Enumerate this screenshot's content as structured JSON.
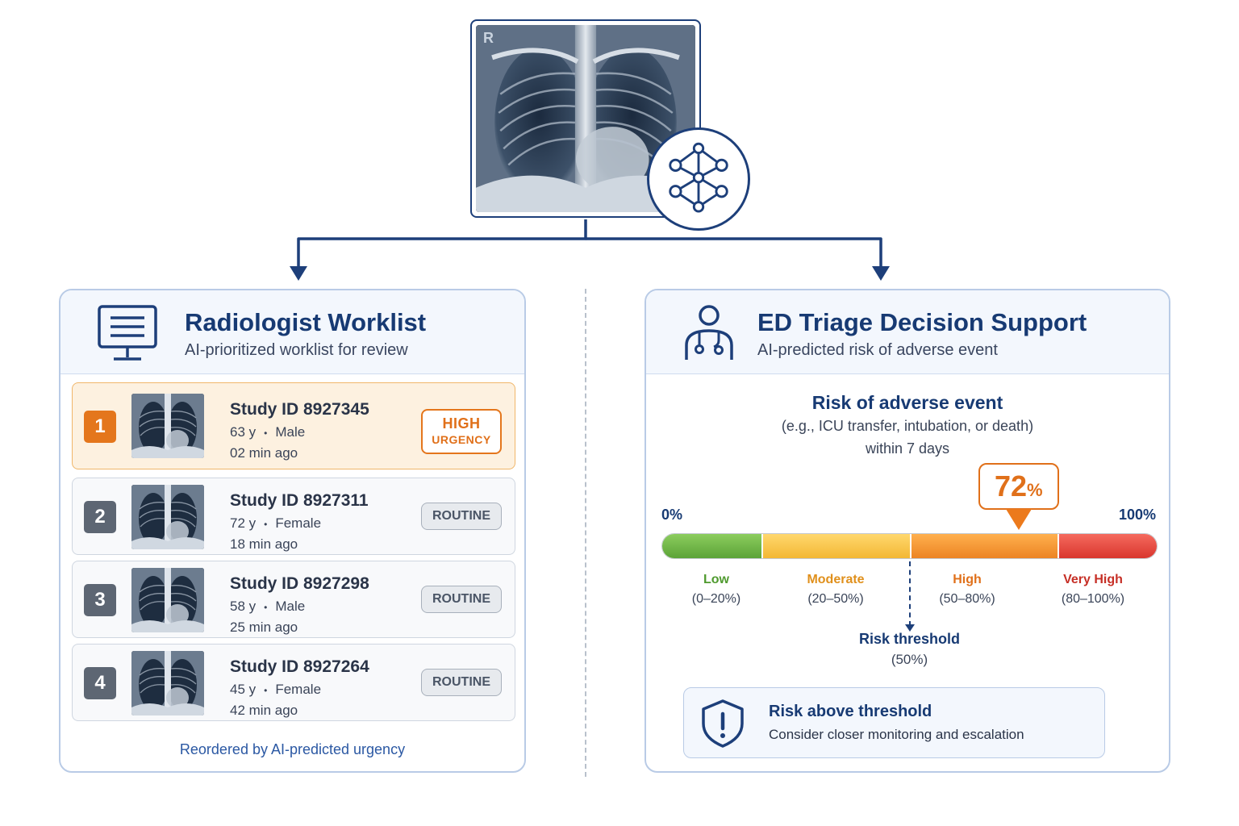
{
  "source_image": {
    "orientation_marker": "R"
  },
  "worklist": {
    "title": "Radiologist Worklist",
    "subtitle": "AI-prioritized worklist for review",
    "icon": "monitor-icon",
    "items": [
      {
        "rank": "1",
        "study_id": "Study ID 8927345",
        "age": "63 y",
        "sex": "Male",
        "time": "02 min ago",
        "tag_line1": "HIGH",
        "tag_line2": "URGENCY",
        "urgent": true
      },
      {
        "rank": "2",
        "study_id": "Study ID 8927311",
        "age": "72 y",
        "sex": "Female",
        "time": "18 min ago",
        "tag_line1": "ROUTINE",
        "urgent": false
      },
      {
        "rank": "3",
        "study_id": "Study ID 8927298",
        "age": "58 y",
        "sex": "Male",
        "time": "25 min ago",
        "tag_line1": "ROUTINE",
        "urgent": false
      },
      {
        "rank": "4",
        "study_id": "Study ID 8927264",
        "age": "45 y",
        "sex": "Female",
        "time": "42 min ago",
        "tag_line1": "ROUTINE",
        "urgent": false
      }
    ],
    "separator": "•",
    "footer": "Reordered by AI-predicted urgency"
  },
  "triage": {
    "title": "ED Triage Decision Support",
    "subtitle": "AI-predicted risk of adverse event",
    "icon": "clinician-icon",
    "risk_title": "Risk of adverse event",
    "risk_description": "(e.g., ICU transfer, intubation, or death)",
    "risk_window": "within 7 days",
    "scale_min": "0%",
    "scale_max": "100%",
    "score": 72,
    "score_display": "72",
    "score_unit": "%",
    "bands": [
      {
        "label": "Low",
        "range": "(0–20%)",
        "from": 0,
        "to": 20,
        "color": "#4f9a2e"
      },
      {
        "label": "Moderate",
        "range": "(20–50%)",
        "from": 20,
        "to": 50,
        "color": "#e0901c"
      },
      {
        "label": "High",
        "range": "(50–80%)",
        "from": 50,
        "to": 80,
        "color": "#e0701a"
      },
      {
        "label": "Very High",
        "range": "(80–100%)",
        "from": 80,
        "to": 100,
        "color": "#c62f26"
      }
    ],
    "threshold": 50,
    "threshold_label": "Risk threshold",
    "threshold_value": "(50%)",
    "alert_title": "Risk above threshold",
    "alert_text": "Consider closer monitoring and escalation"
  },
  "colors": {
    "navy": "#1d3f7a",
    "urgent": "#e4761c",
    "routine_badge": "#5d6673",
    "panel_border": "#b9cbe6"
  }
}
